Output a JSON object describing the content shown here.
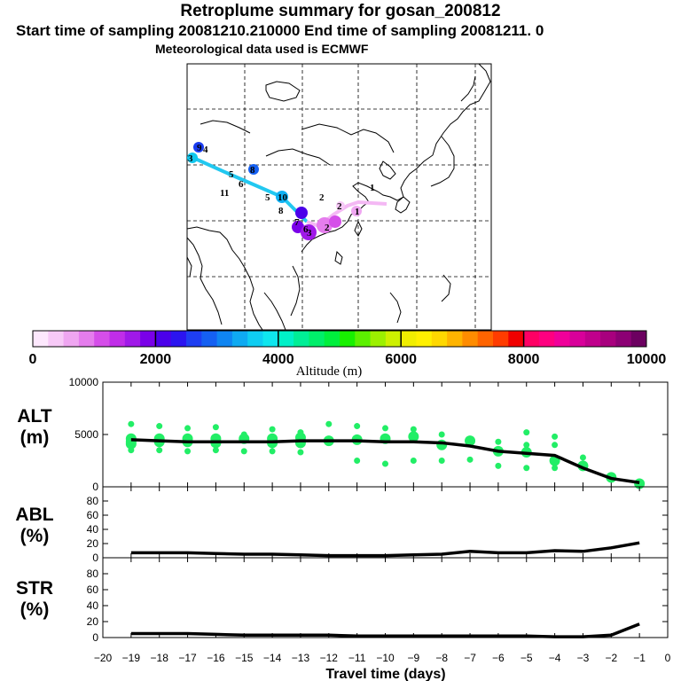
{
  "header": {
    "title": "Retroplume summary for gosan_200812",
    "sampling": "Start time of sampling 20081210.210000     End time of sampling 20081211.     0",
    "met": "Meteorological data used is ECMWF"
  },
  "colorbar": {
    "label": "Altitude (m)",
    "ticks": [
      "0",
      "2000",
      "4000",
      "6000",
      "8000",
      "10000"
    ],
    "colors": [
      "#fde8fd",
      "#f7c9f7",
      "#efa6f1",
      "#e57ded",
      "#d54ee9",
      "#c02de8",
      "#a019e8",
      "#7a00e8",
      "#4b00ea",
      "#2b14f0",
      "#1e3ef2",
      "#1560f2",
      "#0f85f2",
      "#0faaf2",
      "#0fcdf2",
      "#0fe6ee",
      "#00f0c8",
      "#00ee96",
      "#00ee6a",
      "#00ef3d",
      "#18f000",
      "#5cf000",
      "#9cf000",
      "#cdf000",
      "#f0ee00",
      "#fff000",
      "#ffd800",
      "#ffb400",
      "#ff8c00",
      "#ff6400",
      "#ff3c00",
      "#f00000",
      "#ff0064",
      "#ff0080",
      "#f0009a",
      "#d8009a",
      "#c0008c",
      "#a8007e",
      "#8c0074",
      "#6c0060"
    ]
  },
  "map": {
    "trajectory_labels": [
      "9",
      "4",
      "3",
      "5",
      "6",
      "8",
      "11",
      "5",
      "10",
      "8",
      "2",
      "1",
      "2",
      "7",
      "6",
      "3",
      "2",
      "1"
    ]
  },
  "chart_data": [
    {
      "type": "line",
      "panel": "ALT",
      "ylabel": "ALT",
      "yunit": "(m)",
      "ylim": [
        0,
        10000
      ],
      "yticks": [
        "0",
        "5000",
        "10000"
      ],
      "x": [
        -19,
        -18,
        -17,
        -16,
        -15,
        -14,
        -13,
        -12,
        -11,
        -10,
        -9,
        -8,
        -7,
        -6,
        -5,
        -4,
        -3,
        -2,
        -1
      ],
      "series": [
        {
          "name": "mean altitude",
          "values": [
            4500,
            4400,
            4300,
            4300,
            4300,
            4300,
            4400,
            4400,
            4400,
            4300,
            4300,
            4200,
            3900,
            3400,
            3200,
            3000,
            1800,
            800,
            400
          ]
        }
      ],
      "scatter": [
        {
          "x": -19,
          "values": [
            6000,
            4600,
            4300,
            4100,
            3500
          ]
        },
        {
          "x": -18,
          "values": [
            5800,
            4600,
            4300,
            3500
          ]
        },
        {
          "x": -17,
          "values": [
            5600,
            4600,
            4300,
            3400
          ]
        },
        {
          "x": -16,
          "values": [
            5700,
            4600,
            4200,
            3500
          ]
        },
        {
          "x": -15,
          "values": [
            5000,
            4600,
            3400
          ]
        },
        {
          "x": -14,
          "values": [
            5500,
            4600,
            4200,
            3400
          ]
        },
        {
          "x": -13,
          "values": [
            5200,
            4700,
            4200,
            3300
          ]
        },
        {
          "x": -12,
          "values": [
            6000,
            4400
          ]
        },
        {
          "x": -11,
          "values": [
            5800,
            4500,
            2500
          ]
        },
        {
          "x": -10,
          "values": [
            5600,
            4600,
            2200
          ]
        },
        {
          "x": -9,
          "values": [
            5500,
            4800,
            2500
          ]
        },
        {
          "x": -8,
          "values": [
            5000,
            4000,
            2500
          ]
        },
        {
          "x": -7,
          "values": [
            4400,
            2600
          ]
        },
        {
          "x": -6,
          "values": [
            4300,
            3400,
            2000
          ]
        },
        {
          "x": -5,
          "values": [
            5200,
            4000,
            3300,
            1800
          ]
        },
        {
          "x": -4,
          "values": [
            4800,
            4000,
            2500,
            1800
          ]
        },
        {
          "x": -3,
          "values": [
            2800,
            2000
          ]
        },
        {
          "x": -2,
          "values": [
            900
          ]
        },
        {
          "x": -1,
          "values": [
            300
          ]
        }
      ]
    },
    {
      "type": "line",
      "panel": "ABL",
      "ylabel": "ABL",
      "yunit": "(%)",
      "ylim": [
        0,
        100
      ],
      "yticks": [
        "0",
        "20",
        "40",
        "60",
        "80"
      ],
      "x": [
        -19,
        -18,
        -17,
        -16,
        -15,
        -14,
        -13,
        -12,
        -11,
        -10,
        -9,
        -8,
        -7,
        -6,
        -5,
        -4,
        -3,
        -2,
        -1
      ],
      "series": [
        {
          "name": "ABL fraction",
          "values": [
            7,
            7,
            7,
            6,
            5,
            5,
            4,
            3,
            3,
            3,
            4,
            5,
            9,
            7,
            7,
            10,
            9,
            14,
            21
          ]
        }
      ]
    },
    {
      "type": "line",
      "panel": "STR",
      "ylabel": "STR",
      "yunit": "(%)",
      "ylim": [
        0,
        100
      ],
      "yticks": [
        "0",
        "20",
        "40",
        "60",
        "80"
      ],
      "xlabel": "Travel time (days)",
      "xticks": [
        "−20",
        "−19",
        "−18",
        "−17",
        "−16",
        "−15",
        "−14",
        "−13",
        "−12",
        "−11",
        "−10",
        "−9",
        "−8",
        "−7",
        "−6",
        "−5",
        "−4",
        "−3",
        "−2",
        "−1",
        "0"
      ],
      "x": [
        -19,
        -18,
        -17,
        -16,
        -15,
        -14,
        -13,
        -12,
        -11,
        -10,
        -9,
        -8,
        -7,
        -6,
        -5,
        -4,
        -3,
        -2,
        -1
      ],
      "series": [
        {
          "name": "stratospheric fraction",
          "values": [
            5,
            5,
            5,
            4,
            3,
            3,
            3,
            3,
            2,
            2,
            2,
            2,
            2,
            2,
            2,
            1,
            1,
            3,
            17
          ]
        }
      ]
    }
  ]
}
